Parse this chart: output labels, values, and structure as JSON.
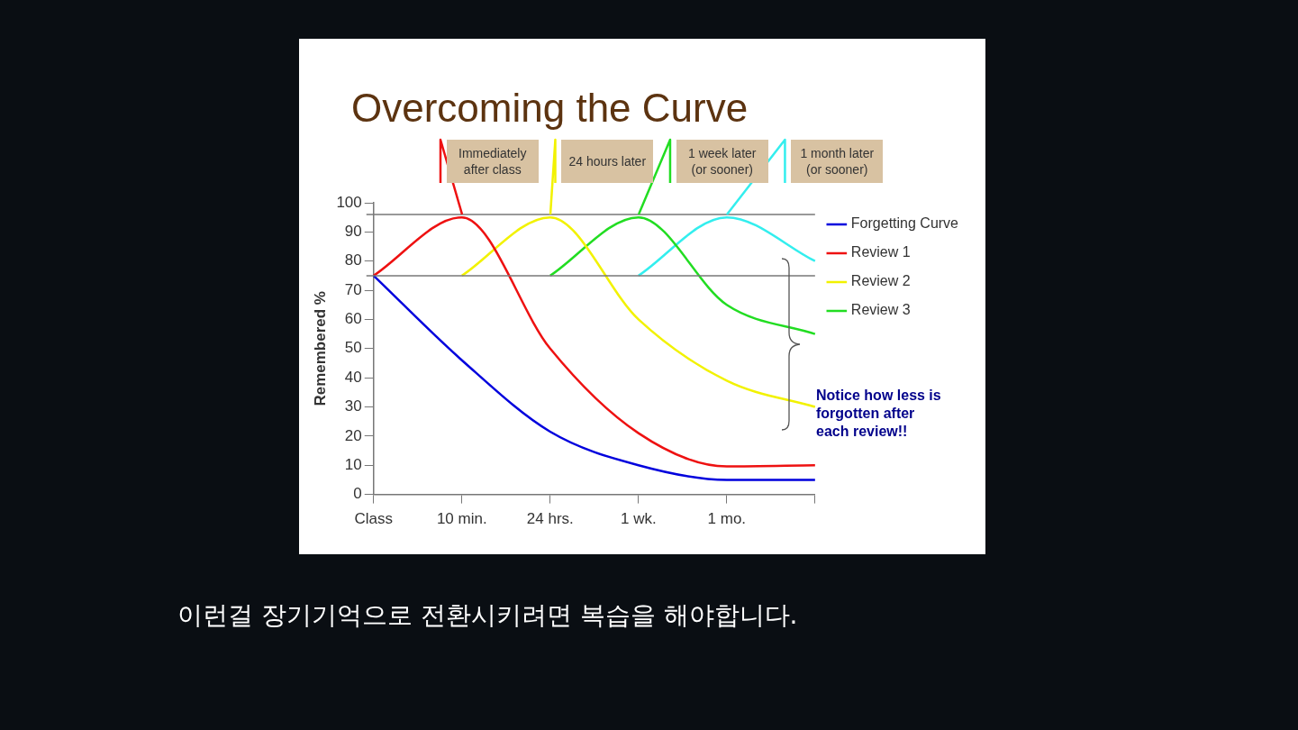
{
  "chart_data": {
    "type": "line",
    "title": "Overcoming the Curve",
    "ylabel": "Remembered %",
    "categories": [
      "Class",
      "10 min.",
      "24 hrs.",
      "1 wk.",
      "1 mo.",
      null
    ],
    "ylim": [
      0,
      100
    ],
    "yticks": [
      0,
      10,
      20,
      30,
      40,
      50,
      60,
      70,
      80,
      90,
      100
    ],
    "grid": false,
    "legend": "right",
    "marker": "none",
    "line_style": "solid",
    "series": [
      {
        "name": "Forgetting Curve",
        "color": "#0000dd",
        "values": [
          75,
          46,
          21.5,
          10,
          5,
          5
        ]
      },
      {
        "name": "Review 1",
        "color": "#ee1111",
        "values": [
          75,
          95,
          50,
          21,
          9.6,
          10
        ]
      },
      {
        "name": "Review 2",
        "color": "#f2f200",
        "values": [
          null,
          75,
          95,
          60,
          39,
          30
        ]
      },
      {
        "name": "Review 3",
        "color": "#22dd22",
        "values": [
          null,
          null,
          75,
          95,
          65,
          55
        ]
      },
      {
        "name": null,
        "color": "#33eeee",
        "values": [
          null,
          null,
          null,
          75,
          95,
          80
        ]
      }
    ],
    "ref_lines": [
      {
        "axis": "y",
        "value": 96,
        "color": "#777777"
      },
      {
        "axis": "y",
        "value": 75,
        "color": "#777777"
      }
    ],
    "annotations": [
      "Immediately after class",
      "24 hours later",
      "1 week later (or sooner)",
      "1 month later (or sooner)",
      "Notice how less is forgotten after each review!!",
      "이런걸 장기기억으로 전환시키려면 복습을 해야합니다."
    ]
  }
}
